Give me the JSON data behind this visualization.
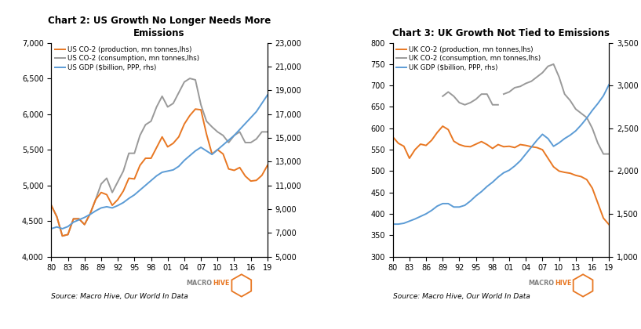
{
  "chart2": {
    "title": "Chart 2: US Growth No Longer Needs More\nEmissions",
    "us_co2_prod": [
      4720,
      4560,
      4290,
      4310,
      4530,
      4530,
      4450,
      4600,
      4800,
      4900,
      4870,
      4720,
      4800,
      4920,
      5100,
      5090,
      5280,
      5380,
      5380,
      5530,
      5680,
      5540,
      5590,
      5680,
      5860,
      5980,
      6070,
      6060,
      5720,
      5440,
      5500,
      5440,
      5230,
      5210,
      5250,
      5130,
      5060,
      5070,
      5140,
      5280
    ],
    "us_co2_cons": [
      4720,
      4560,
      4290,
      4310,
      4530,
      4530,
      4450,
      4600,
      4800,
      5020,
      5100,
      4900,
      5050,
      5200,
      5450,
      5450,
      5700,
      5850,
      5900,
      6100,
      6250,
      6100,
      6150,
      6300,
      6450,
      6500,
      6480,
      6130,
      5900,
      5820,
      5750,
      5700,
      5600,
      5700,
      5750,
      5600,
      5600,
      5650,
      5750,
      5750
    ],
    "us_gdp": [
      7350,
      7500,
      7350,
      7530,
      7900,
      8100,
      8300,
      8550,
      8850,
      9100,
      9200,
      9100,
      9300,
      9550,
      9900,
      10200,
      10600,
      11000,
      11400,
      11800,
      12100,
      12200,
      12300,
      12600,
      13100,
      13500,
      13900,
      14200,
      13900,
      13600,
      14000,
      14400,
      14800,
      15200,
      15700,
      16200,
      16700,
      17200,
      17900,
      18600
    ],
    "lhs_ylim": [
      4000,
      7000
    ],
    "lhs_yticks": [
      4000,
      4500,
      5000,
      5500,
      6000,
      6500,
      7000
    ],
    "rhs_ylim": [
      5000,
      23000
    ],
    "rhs_yticks": [
      5000,
      7000,
      9000,
      11000,
      13000,
      15000,
      17000,
      19000,
      21000,
      23000
    ],
    "xtick_labels": [
      "80",
      "83",
      "86",
      "89",
      "92",
      "95",
      "98",
      "01",
      "04",
      "07",
      "10",
      "13",
      "16",
      "19"
    ],
    "xtick_positions": [
      0,
      3,
      6,
      9,
      12,
      15,
      18,
      21,
      24,
      27,
      30,
      33,
      36,
      39
    ],
    "legend": [
      "US CO-2 (production, mn tonnes,lhs)",
      "US CO-2 (consumption, mn tonnes,lhs)",
      "US GDP ($billion, PPP, rhs)"
    ],
    "source": "Source: Macro Hive, Our World In Data"
  },
  "chart3": {
    "title": "Chart 3: UK Growth Not Tied to Emissions",
    "uk_co2_prod": [
      580,
      565,
      558,
      530,
      550,
      563,
      560,
      572,
      590,
      605,
      597,
      570,
      562,
      558,
      557,
      563,
      569,
      562,
      553,
      562,
      557,
      558,
      555,
      562,
      560,
      557,
      555,
      550,
      530,
      510,
      500,
      497,
      495,
      490,
      487,
      480,
      460,
      425,
      390,
      375
    ],
    "uk_co2_cons_early_x": [
      9,
      10,
      11,
      12,
      13,
      14,
      15,
      16,
      17,
      18,
      19
    ],
    "uk_co2_cons_early_y": [
      675,
      685,
      675,
      660,
      655,
      660,
      668,
      680,
      680,
      655,
      655
    ],
    "uk_co2_cons_late_x": [
      20,
      21,
      22,
      23,
      24,
      25,
      26,
      27,
      28,
      29,
      30,
      31,
      32,
      33,
      34,
      35,
      36,
      37,
      38,
      39
    ],
    "uk_co2_cons_late_y": [
      680,
      685,
      695,
      698,
      705,
      710,
      720,
      730,
      745,
      750,
      720,
      680,
      665,
      645,
      635,
      625,
      600,
      565,
      540,
      540
    ],
    "uk_gdp": [
      1380,
      1380,
      1390,
      1415,
      1440,
      1470,
      1500,
      1540,
      1590,
      1620,
      1620,
      1580,
      1580,
      1600,
      1650,
      1710,
      1760,
      1820,
      1870,
      1930,
      1980,
      2010,
      2060,
      2120,
      2200,
      2280,
      2360,
      2430,
      2380,
      2290,
      2330,
      2380,
      2420,
      2470,
      2540,
      2620,
      2710,
      2790,
      2880,
      3010
    ],
    "lhs_ylim": [
      300,
      800
    ],
    "lhs_yticks": [
      300,
      350,
      400,
      450,
      500,
      550,
      600,
      650,
      700,
      750,
      800
    ],
    "rhs_ylim": [
      1000,
      3500
    ],
    "rhs_yticks": [
      1000,
      1500,
      2000,
      2500,
      3000,
      3500
    ],
    "xtick_labels": [
      "80",
      "83",
      "86",
      "89",
      "92",
      "95",
      "98",
      "01",
      "04",
      "07",
      "10",
      "13",
      "16",
      "19"
    ],
    "xtick_positions": [
      0,
      3,
      6,
      9,
      12,
      15,
      18,
      21,
      24,
      27,
      30,
      33,
      36,
      39
    ],
    "legend": [
      "UK CO-2 (production, mn tonnes,lhs)",
      "UK CO-2 (consumption, mn tonnes,lhs)",
      "UK GDP ($billion, PPP, rhs)"
    ],
    "source": "Source: Macro Hive, Our World In Data"
  },
  "colors": {
    "orange": "#E87722",
    "gray": "#999999",
    "blue": "#5B9BD5"
  },
  "macrohive_gray": "#808080",
  "macrohive_orange": "#E87722"
}
